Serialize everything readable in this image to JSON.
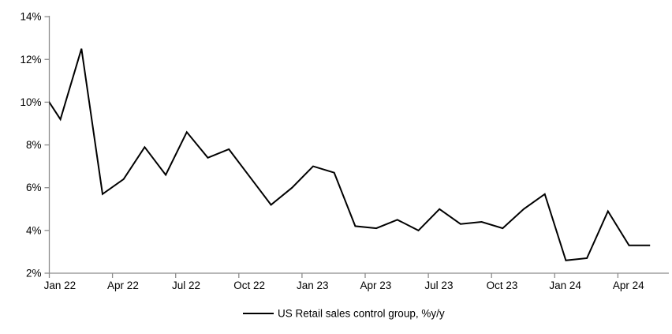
{
  "chart_data": {
    "type": "line",
    "title": "",
    "series_name": "US Retail sales control group, %y/y",
    "x": [
      "Dec 21",
      "Jan 22",
      "Feb 22",
      "Mar 22",
      "Apr 22",
      "May 22",
      "Jun 22",
      "Jul 22",
      "Aug 22",
      "Sep 22",
      "Oct 22",
      "Nov 22",
      "Dec 22",
      "Jan 23",
      "Feb 23",
      "Mar 23",
      "Apr 23",
      "May 23",
      "Jun 23",
      "Jul 23",
      "Aug 23",
      "Sep 23",
      "Oct 23",
      "Nov 23",
      "Dec 23",
      "Jan 24",
      "Feb 24",
      "Mar 24",
      "Apr 24",
      "May 24"
    ],
    "values": [
      10.7,
      9.2,
      12.5,
      5.7,
      6.4,
      7.9,
      6.6,
      8.6,
      7.4,
      7.8,
      6.5,
      5.2,
      6.0,
      7.0,
      6.7,
      4.2,
      4.1,
      4.5,
      4.0,
      5.0,
      4.3,
      4.4,
      4.1,
      5.0,
      5.7,
      2.6,
      2.7,
      4.9,
      3.3,
      3.3
    ],
    "x_tick_labels": [
      "Jan 22",
      "Apr 22",
      "Jul 22",
      "Oct 22",
      "Jan 23",
      "Apr 23",
      "Jul 23",
      "Oct 23",
      "Jan 24",
      "Apr 24"
    ],
    "y_tick_labels": [
      "2%",
      "4%",
      "6%",
      "8%",
      "10%",
      "12%",
      "14%"
    ],
    "ylim": [
      2,
      14
    ],
    "y_tick_step": 2,
    "x_tick_interval_months": 3,
    "grid": false,
    "legend": {
      "label": "US Retail sales control group, %y/y",
      "position": "bottom-center"
    },
    "colors": {
      "line": "#000000",
      "axis": "#8c8c8c",
      "text": "#000000",
      "background": "#ffffff"
    },
    "note": "First point (Dec 21) lies left of the y-axis; its segment is clipped at the plot edge."
  }
}
